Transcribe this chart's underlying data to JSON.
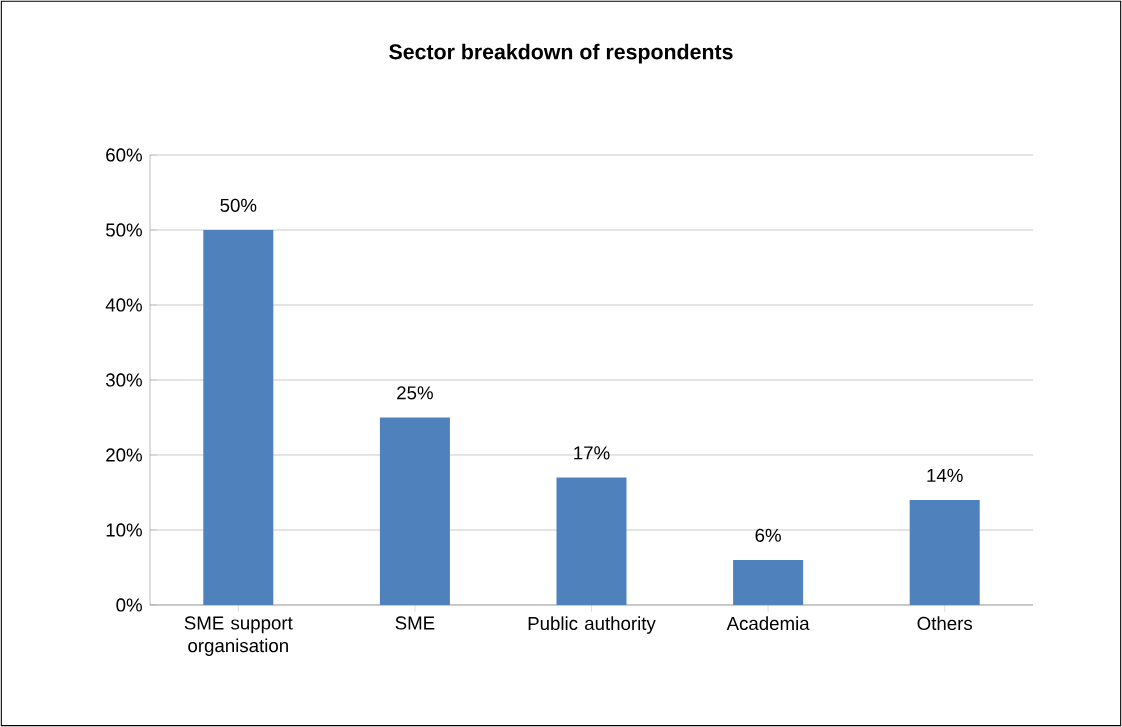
{
  "chart_data": {
    "type": "bar",
    "title": "Sector breakdown of respondents",
    "categories": [
      "SME support organisation",
      "SME",
      "Public authority",
      "Academia",
      "Others"
    ],
    "values": [
      50,
      25,
      17,
      6,
      14
    ],
    "color": "#4f81bd",
    "value_labels": [
      "50%",
      "25%",
      "17%",
      "6%",
      "14%"
    ],
    "ylim": [
      0,
      60
    ],
    "yticks": [
      {
        "value": 0,
        "label": "0%"
      },
      {
        "value": 10,
        "label": "10%"
      },
      {
        "value": 20,
        "label": "20%"
      },
      {
        "value": 30,
        "label": "30%"
      },
      {
        "value": 40,
        "label": "40%"
      },
      {
        "value": 50,
        "label": "50%"
      },
      {
        "value": 60,
        "label": "60%"
      }
    ],
    "grid": "y"
  }
}
